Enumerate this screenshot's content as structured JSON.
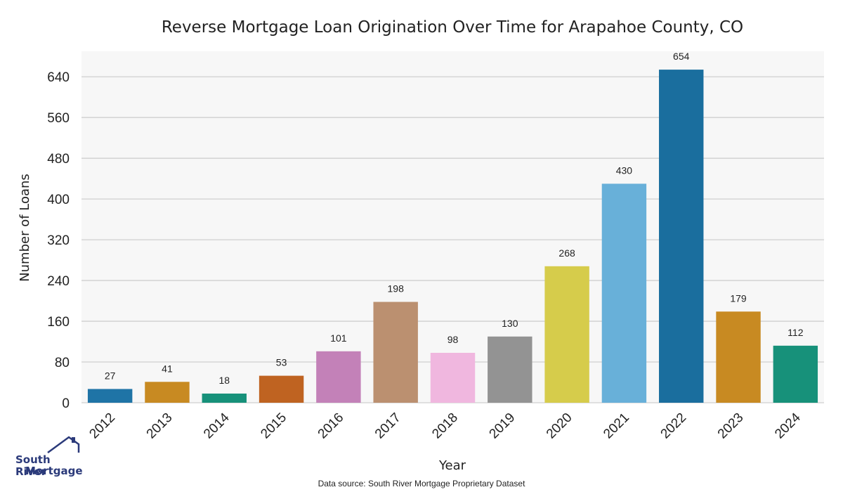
{
  "chart_data": {
    "type": "bar",
    "title": "Reverse Mortgage Loan Origination Over Time for Arapahoe County, CO",
    "xlabel": "Year",
    "ylabel": "Number of Loans",
    "categories": [
      "2012",
      "2013",
      "2014",
      "2015",
      "2016",
      "2017",
      "2018",
      "2019",
      "2020",
      "2021",
      "2022",
      "2023",
      "2024"
    ],
    "values": [
      27,
      41,
      18,
      53,
      101,
      198,
      98,
      130,
      268,
      430,
      654,
      179,
      112
    ],
    "colors": [
      "#1f74a6",
      "#c88a22",
      "#17917a",
      "#bf6321",
      "#c381b8",
      "#bb9070",
      "#f0b7df",
      "#939393",
      "#d6cc4b",
      "#68b0d9",
      "#1a6e9e",
      "#c88a22",
      "#17917a"
    ],
    "ylim": [
      0,
      690
    ],
    "yticks": [
      0,
      80,
      160,
      240,
      320,
      400,
      480,
      560,
      640
    ],
    "grid": true,
    "background": "#f7f7f7",
    "gridcolor": "#cfcfcf"
  },
  "logo": {
    "line1": "South River",
    "line2": "Mortgage",
    "color": "#2b3a7a"
  },
  "source": "Data source: South River Mortgage Proprietary Dataset"
}
